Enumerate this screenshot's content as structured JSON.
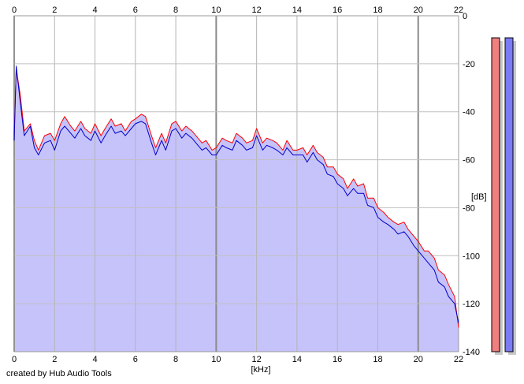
{
  "credit": "created by Hub Audio Tools",
  "chart_data": {
    "type": "area",
    "title": "",
    "xlabel": "[kHz]",
    "ylabel": "[dB]",
    "xlim": [
      0,
      22
    ],
    "ylim": [
      -140,
      0
    ],
    "x_ticks": [
      "0",
      "2",
      "4",
      "6",
      "8",
      "10",
      "12",
      "14",
      "16",
      "18",
      "20",
      "22"
    ],
    "y_ticks": [
      "0",
      "-20",
      "-40",
      "-60",
      "-80",
      "-100",
      "-120",
      "-140"
    ],
    "grid": true,
    "fill_color": "#c6c3fb",
    "series": [
      {
        "color": "#ff0000",
        "x": [
          0,
          0.1,
          0.3,
          0.5,
          0.8,
          1.0,
          1.2,
          1.5,
          1.8,
          2.0,
          2.3,
          2.5,
          2.8,
          3.0,
          3.3,
          3.5,
          3.8,
          4.0,
          4.3,
          4.5,
          4.8,
          5.0,
          5.3,
          5.5,
          5.8,
          6.0,
          6.3,
          6.5,
          6.8,
          7.0,
          7.3,
          7.5,
          7.8,
          8.0,
          8.3,
          8.5,
          8.8,
          9.0,
          9.3,
          9.5,
          9.8,
          10.0,
          10.3,
          10.5,
          10.8,
          11.0,
          11.3,
          11.5,
          11.8,
          12.0,
          12.3,
          12.5,
          12.8,
          13.0,
          13.3,
          13.5,
          13.8,
          14.0,
          14.3,
          14.5,
          14.8,
          15.0,
          15.3,
          15.5,
          15.8,
          16.0,
          16.3,
          16.5,
          16.8,
          17.0,
          17.3,
          17.5,
          17.8,
          18.0,
          18.3,
          18.5,
          18.8,
          19.0,
          19.3,
          19.5,
          19.8,
          20.0,
          20.3,
          20.5,
          20.8,
          21.0,
          21.3,
          21.5,
          21.8,
          22.0
        ],
        "y": [
          -50,
          -22,
          -33,
          -48,
          -45,
          -52,
          -56,
          -50,
          -49,
          -52,
          -45,
          -42,
          -46,
          -48,
          -44,
          -47,
          -49,
          -45,
          -50,
          -47,
          -43,
          -46,
          -45,
          -48,
          -44,
          -43,
          -41,
          -42,
          -50,
          -55,
          -49,
          -53,
          -45,
          -44,
          -48,
          -46,
          -48,
          -50,
          -53,
          -52,
          -56,
          -55,
          -51,
          -52,
          -53,
          -49,
          -51,
          -53,
          -52,
          -47,
          -53,
          -51,
          -52,
          -53,
          -56,
          -52,
          -56,
          -56,
          -55,
          -58,
          -54,
          -57,
          -59,
          -63,
          -63,
          -66,
          -68,
          -72,
          -68,
          -71,
          -70,
          -76,
          -76,
          -80,
          -82,
          -84,
          -86,
          -87,
          -86,
          -89,
          -92,
          -94,
          -98,
          -98,
          -101,
          -106,
          -108,
          -112,
          -117,
          -130
        ]
      },
      {
        "color": "#0000c8",
        "x": [
          0,
          0.1,
          0.3,
          0.5,
          0.8,
          1.0,
          1.2,
          1.5,
          1.8,
          2.0,
          2.3,
          2.5,
          2.8,
          3.0,
          3.3,
          3.5,
          3.8,
          4.0,
          4.3,
          4.5,
          4.8,
          5.0,
          5.3,
          5.5,
          5.8,
          6.0,
          6.3,
          6.5,
          6.8,
          7.0,
          7.3,
          7.5,
          7.8,
          8.0,
          8.3,
          8.5,
          8.8,
          9.0,
          9.3,
          9.5,
          9.8,
          10.0,
          10.3,
          10.5,
          10.8,
          11.0,
          11.3,
          11.5,
          11.8,
          12.0,
          12.3,
          12.5,
          12.8,
          13.0,
          13.3,
          13.5,
          13.8,
          14.0,
          14.3,
          14.5,
          14.8,
          15.0,
          15.3,
          15.5,
          15.8,
          16.0,
          16.3,
          16.5,
          16.8,
          17.0,
          17.3,
          17.5,
          17.8,
          18.0,
          18.3,
          18.5,
          18.8,
          19.0,
          19.3,
          19.5,
          19.8,
          20.0,
          20.3,
          20.5,
          20.8,
          21.0,
          21.3,
          21.5,
          21.8,
          22.0
        ],
        "y": [
          -52,
          -21,
          -36,
          -50,
          -46,
          -55,
          -58,
          -53,
          -52,
          -56,
          -48,
          -46,
          -49,
          -51,
          -47,
          -50,
          -52,
          -48,
          -53,
          -50,
          -46,
          -49,
          -48,
          -50,
          -47,
          -45,
          -44,
          -45,
          -53,
          -58,
          -52,
          -56,
          -48,
          -47,
          -51,
          -49,
          -51,
          -53,
          -56,
          -55,
          -58,
          -58,
          -54,
          -55,
          -56,
          -52,
          -54,
          -56,
          -55,
          -50,
          -56,
          -54,
          -55,
          -56,
          -58,
          -55,
          -58,
          -58,
          -58,
          -61,
          -57,
          -60,
          -62,
          -66,
          -67,
          -70,
          -72,
          -75,
          -72,
          -74,
          -74,
          -79,
          -80,
          -84,
          -86,
          -87,
          -89,
          -91,
          -90,
          -92,
          -96,
          -98,
          -101,
          -103,
          -106,
          -111,
          -113,
          -117,
          -120,
          -128
        ]
      }
    ]
  },
  "meters": {
    "left_color": "#f08080",
    "right_color": "#7b7bf3",
    "left_level": 1.0,
    "right_level": 1.0
  }
}
